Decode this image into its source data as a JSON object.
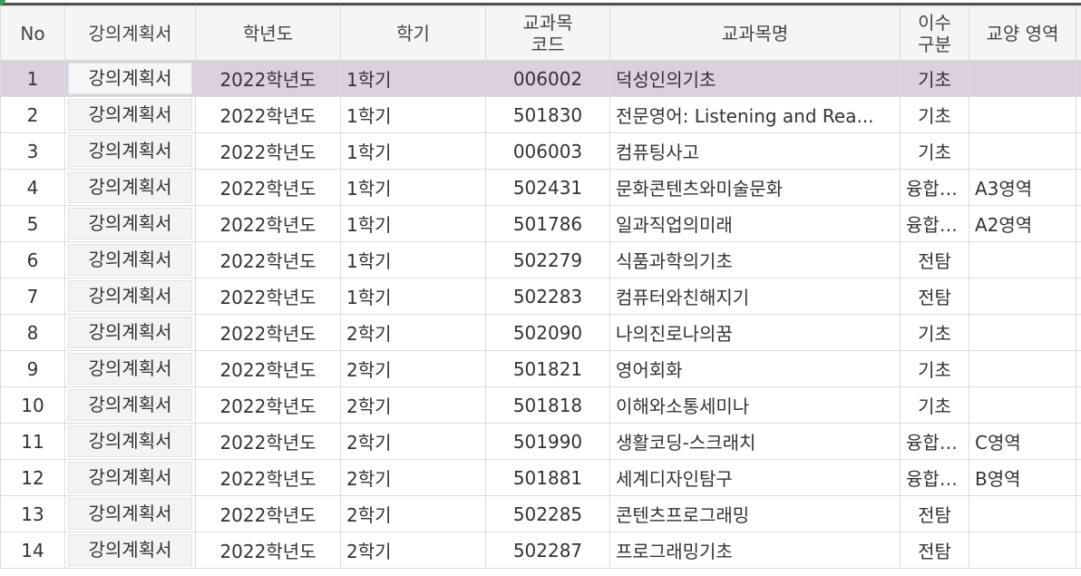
{
  "columns": [
    {
      "label": "No"
    },
    {
      "label": "강의계획서"
    },
    {
      "label": "학년도"
    },
    {
      "label": "학기"
    },
    {
      "label_lines": [
        "교과목",
        "코드"
      ]
    },
    {
      "label": "교과목명"
    },
    {
      "label_lines": [
        "이수",
        "구분"
      ]
    },
    {
      "label": "교양 영역"
    }
  ],
  "selected_row_index": 0,
  "rows": [
    {
      "no": "1",
      "plan": "강의계획서",
      "year": "2022학년도",
      "term": "1학기",
      "code": "006002",
      "name": "덕성인의기초",
      "type": "기초",
      "area": ""
    },
    {
      "no": "2",
      "plan": "강의계획서",
      "year": "2022학년도",
      "term": "1학기",
      "code": "501830",
      "name": "전문영어: Listening and Rea...",
      "type": "기초",
      "area": ""
    },
    {
      "no": "3",
      "plan": "강의계획서",
      "year": "2022학년도",
      "term": "1학기",
      "code": "006003",
      "name": "컴퓨팅사고",
      "type": "기초",
      "area": ""
    },
    {
      "no": "4",
      "plan": "강의계획서",
      "year": "2022학년도",
      "term": "1학기",
      "code": "502431",
      "name": "문화콘텐츠와미술문화",
      "type": "융합(...",
      "area": "A3영역"
    },
    {
      "no": "5",
      "plan": "강의계획서",
      "year": "2022학년도",
      "term": "1학기",
      "code": "501786",
      "name": "일과직업의미래",
      "type": "융합(...",
      "area": "A2영역"
    },
    {
      "no": "6",
      "plan": "강의계획서",
      "year": "2022학년도",
      "term": "1학기",
      "code": "502279",
      "name": "식품과학의기초",
      "type": "전탐",
      "area": ""
    },
    {
      "no": "7",
      "plan": "강의계획서",
      "year": "2022학년도",
      "term": "1학기",
      "code": "502283",
      "name": "컴퓨터와친해지기",
      "type": "전탐",
      "area": ""
    },
    {
      "no": "8",
      "plan": "강의계획서",
      "year": "2022학년도",
      "term": "2학기",
      "code": "502090",
      "name": "나의진로나의꿈",
      "type": "기초",
      "area": ""
    },
    {
      "no": "9",
      "plan": "강의계획서",
      "year": "2022학년도",
      "term": "2학기",
      "code": "501821",
      "name": "영어회화",
      "type": "기초",
      "area": ""
    },
    {
      "no": "10",
      "plan": "강의계획서",
      "year": "2022학년도",
      "term": "2학기",
      "code": "501818",
      "name": "이해와소통세미나",
      "type": "기초",
      "area": ""
    },
    {
      "no": "11",
      "plan": "강의계획서",
      "year": "2022학년도",
      "term": "2학기",
      "code": "501990",
      "name": "생활코딩-스크래치",
      "type": "융합(...",
      "area": "C영역"
    },
    {
      "no": "12",
      "plan": "강의계획서",
      "year": "2022학년도",
      "term": "2학기",
      "code": "501881",
      "name": "세계디자인탐구",
      "type": "융합(...",
      "area": "B영역"
    },
    {
      "no": "13",
      "plan": "강의계획서",
      "year": "2022학년도",
      "term": "2학기",
      "code": "502285",
      "name": "콘텐츠프로그래밍",
      "type": "전탐",
      "area": ""
    },
    {
      "no": "14",
      "plan": "강의계획서",
      "year": "2022학년도",
      "term": "2학기",
      "code": "502287",
      "name": "프로그래밍기초",
      "type": "전탐",
      "area": ""
    }
  ],
  "colors": {
    "selected_row": "#dccfe0",
    "header_bg": "#f5f5f5",
    "grid_line": "#dcdcdc",
    "top_border": "#4a4f57",
    "corner_dot": "#3b9a5a"
  }
}
